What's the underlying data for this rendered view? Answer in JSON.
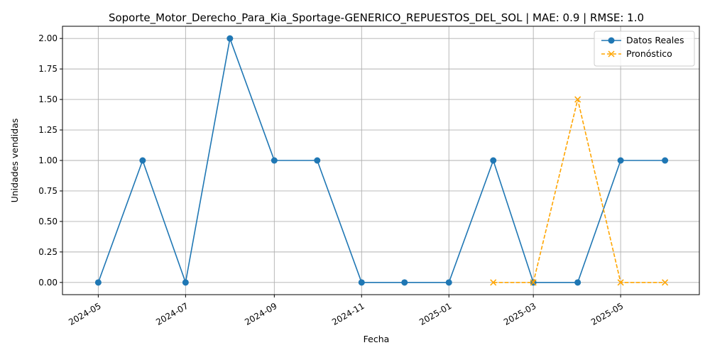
{
  "chart_data": {
    "type": "line",
    "title": "Soporte_Motor_Derecho_Para_Kia_Sportage-GENERICO_REPUESTOS_DEL_SOL | MAE: 0.9 | RMSE: 1.0",
    "xlabel": "Fecha",
    "ylabel": "Unidades vendidas",
    "grid": true,
    "legend_position": "top-right",
    "xlim": [
      "2024-04-06",
      "2025-06-25"
    ],
    "ylim": [
      -0.1,
      2.1
    ],
    "x_ticks": [
      "2024-05",
      "2024-07",
      "2024-09",
      "2024-11",
      "2025-01",
      "2025-03",
      "2025-05"
    ],
    "y_ticks": [
      "0.00",
      "0.25",
      "0.50",
      "0.75",
      "1.00",
      "1.25",
      "1.50",
      "1.75",
      "2.00"
    ],
    "series": [
      {
        "name": "Datos Reales",
        "color": "#1f77b4",
        "style": "solid",
        "marker": "circle",
        "x": [
          "2024-05-01",
          "2024-06-01",
          "2024-07-01",
          "2024-08-01",
          "2024-09-01",
          "2024-10-01",
          "2024-11-01",
          "2024-12-01",
          "2025-01-01",
          "2025-02-01",
          "2025-03-01",
          "2025-04-01",
          "2025-05-01",
          "2025-06-01"
        ],
        "values": [
          0,
          1,
          0,
          2,
          1,
          1,
          0,
          0,
          0,
          1,
          0,
          0,
          1,
          1
        ]
      },
      {
        "name": "Pronóstico",
        "color": "#ffa500",
        "style": "dashed",
        "marker": "x",
        "x": [
          "2025-02-01",
          "2025-03-01",
          "2025-04-01",
          "2025-05-01",
          "2025-06-01"
        ],
        "values": [
          0,
          0,
          1.5,
          0,
          0
        ]
      }
    ]
  }
}
